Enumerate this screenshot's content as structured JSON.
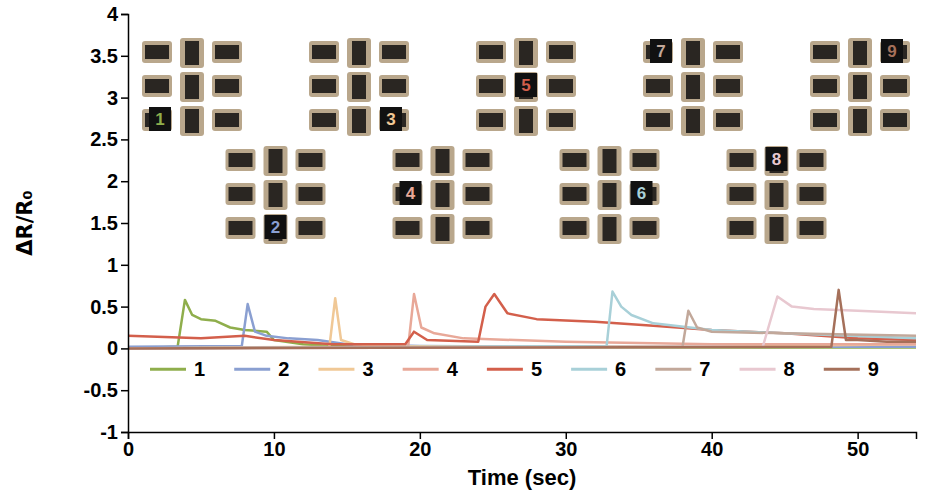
{
  "chart_data": {
    "type": "line",
    "x_label": "Time (sec)",
    "y_label": "ΔR/R₀",
    "xlim": [
      0,
      54
    ],
    "xticks": [
      0,
      10,
      20,
      30,
      40,
      50
    ],
    "ylim": [
      -1,
      4
    ],
    "yticks": [
      -1,
      -0.5,
      0,
      0.5,
      1,
      1.5,
      2,
      2.5,
      3,
      3.5,
      4
    ],
    "grid": false,
    "legend": "bottom",
    "series": [
      {
        "name": "1",
        "color": "#8fae4c",
        "x": [
          0,
          3.4,
          3.9,
          4.4,
          5,
          6,
          7,
          8,
          9.5,
          10,
          12,
          14,
          20,
          30,
          40,
          54
        ],
        "values": [
          0,
          0.02,
          0.58,
          0.4,
          0.35,
          0.33,
          0.25,
          0.22,
          0.2,
          0.1,
          0.05,
          0.03,
          0.02,
          0.01,
          0.01,
          0.01
        ]
      },
      {
        "name": "2",
        "color": "#8a9fd1",
        "x": [
          0,
          7.8,
          8.2,
          8.7,
          9.5,
          11,
          13,
          15,
          20,
          30,
          54
        ],
        "values": [
          0.02,
          0.03,
          0.53,
          0.2,
          0.15,
          0.12,
          0.1,
          0.05,
          0.03,
          0.02,
          0.02
        ]
      },
      {
        "name": "3",
        "color": "#f0c896",
        "x": [
          0,
          13.8,
          14.2,
          14.6,
          15.5,
          18,
          25,
          40,
          54
        ],
        "values": [
          0,
          0.02,
          0.6,
          0.1,
          0.05,
          0.03,
          0.02,
          0.02,
          0.05
        ]
      },
      {
        "name": "4",
        "color": "#e8a898",
        "x": [
          0,
          19.2,
          19.6,
          20.1,
          21,
          23,
          30,
          40,
          54
        ],
        "values": [
          0,
          0.02,
          0.65,
          0.25,
          0.18,
          0.12,
          0.08,
          0.05,
          0.05
        ]
      },
      {
        "name": "5",
        "color": "#d35f4b",
        "x": [
          0,
          5,
          8,
          10,
          14,
          19,
          19.6,
          20.5,
          24,
          24.5,
          25.1,
          26,
          28,
          32,
          36,
          40,
          45,
          50,
          54
        ],
        "values": [
          0.15,
          0.12,
          0.15,
          0.1,
          0.05,
          0.05,
          0.2,
          0.1,
          0.08,
          0.5,
          0.65,
          0.42,
          0.35,
          0.32,
          0.27,
          0.22,
          0.18,
          0.12,
          0.1
        ]
      },
      {
        "name": "6",
        "color": "#a8d0d8",
        "x": [
          0,
          32.8,
          33.2,
          33.8,
          34.5,
          36,
          40,
          45,
          54
        ],
        "values": [
          0,
          0.03,
          0.68,
          0.5,
          0.4,
          0.3,
          0.22,
          0.18,
          0.12
        ]
      },
      {
        "name": "7",
        "color": "#c2a89a",
        "x": [
          0,
          38,
          38.4,
          39,
          40,
          45,
          54
        ],
        "values": [
          0,
          0.02,
          0.45,
          0.25,
          0.2,
          0.18,
          0.15
        ]
      },
      {
        "name": "8",
        "color": "#e8c8d0",
        "x": [
          0,
          43.5,
          44.5,
          45.5,
          47,
          50,
          54
        ],
        "values": [
          0,
          0.02,
          0.62,
          0.5,
          0.47,
          0.45,
          0.42
        ]
      },
      {
        "name": "9",
        "color": "#a5705a",
        "x": [
          0,
          48.2,
          48.7,
          49.2,
          50,
          52,
          54
        ],
        "values": [
          0,
          0.02,
          0.7,
          0.1,
          0.1,
          0.08,
          0.08
        ]
      }
    ]
  }
}
